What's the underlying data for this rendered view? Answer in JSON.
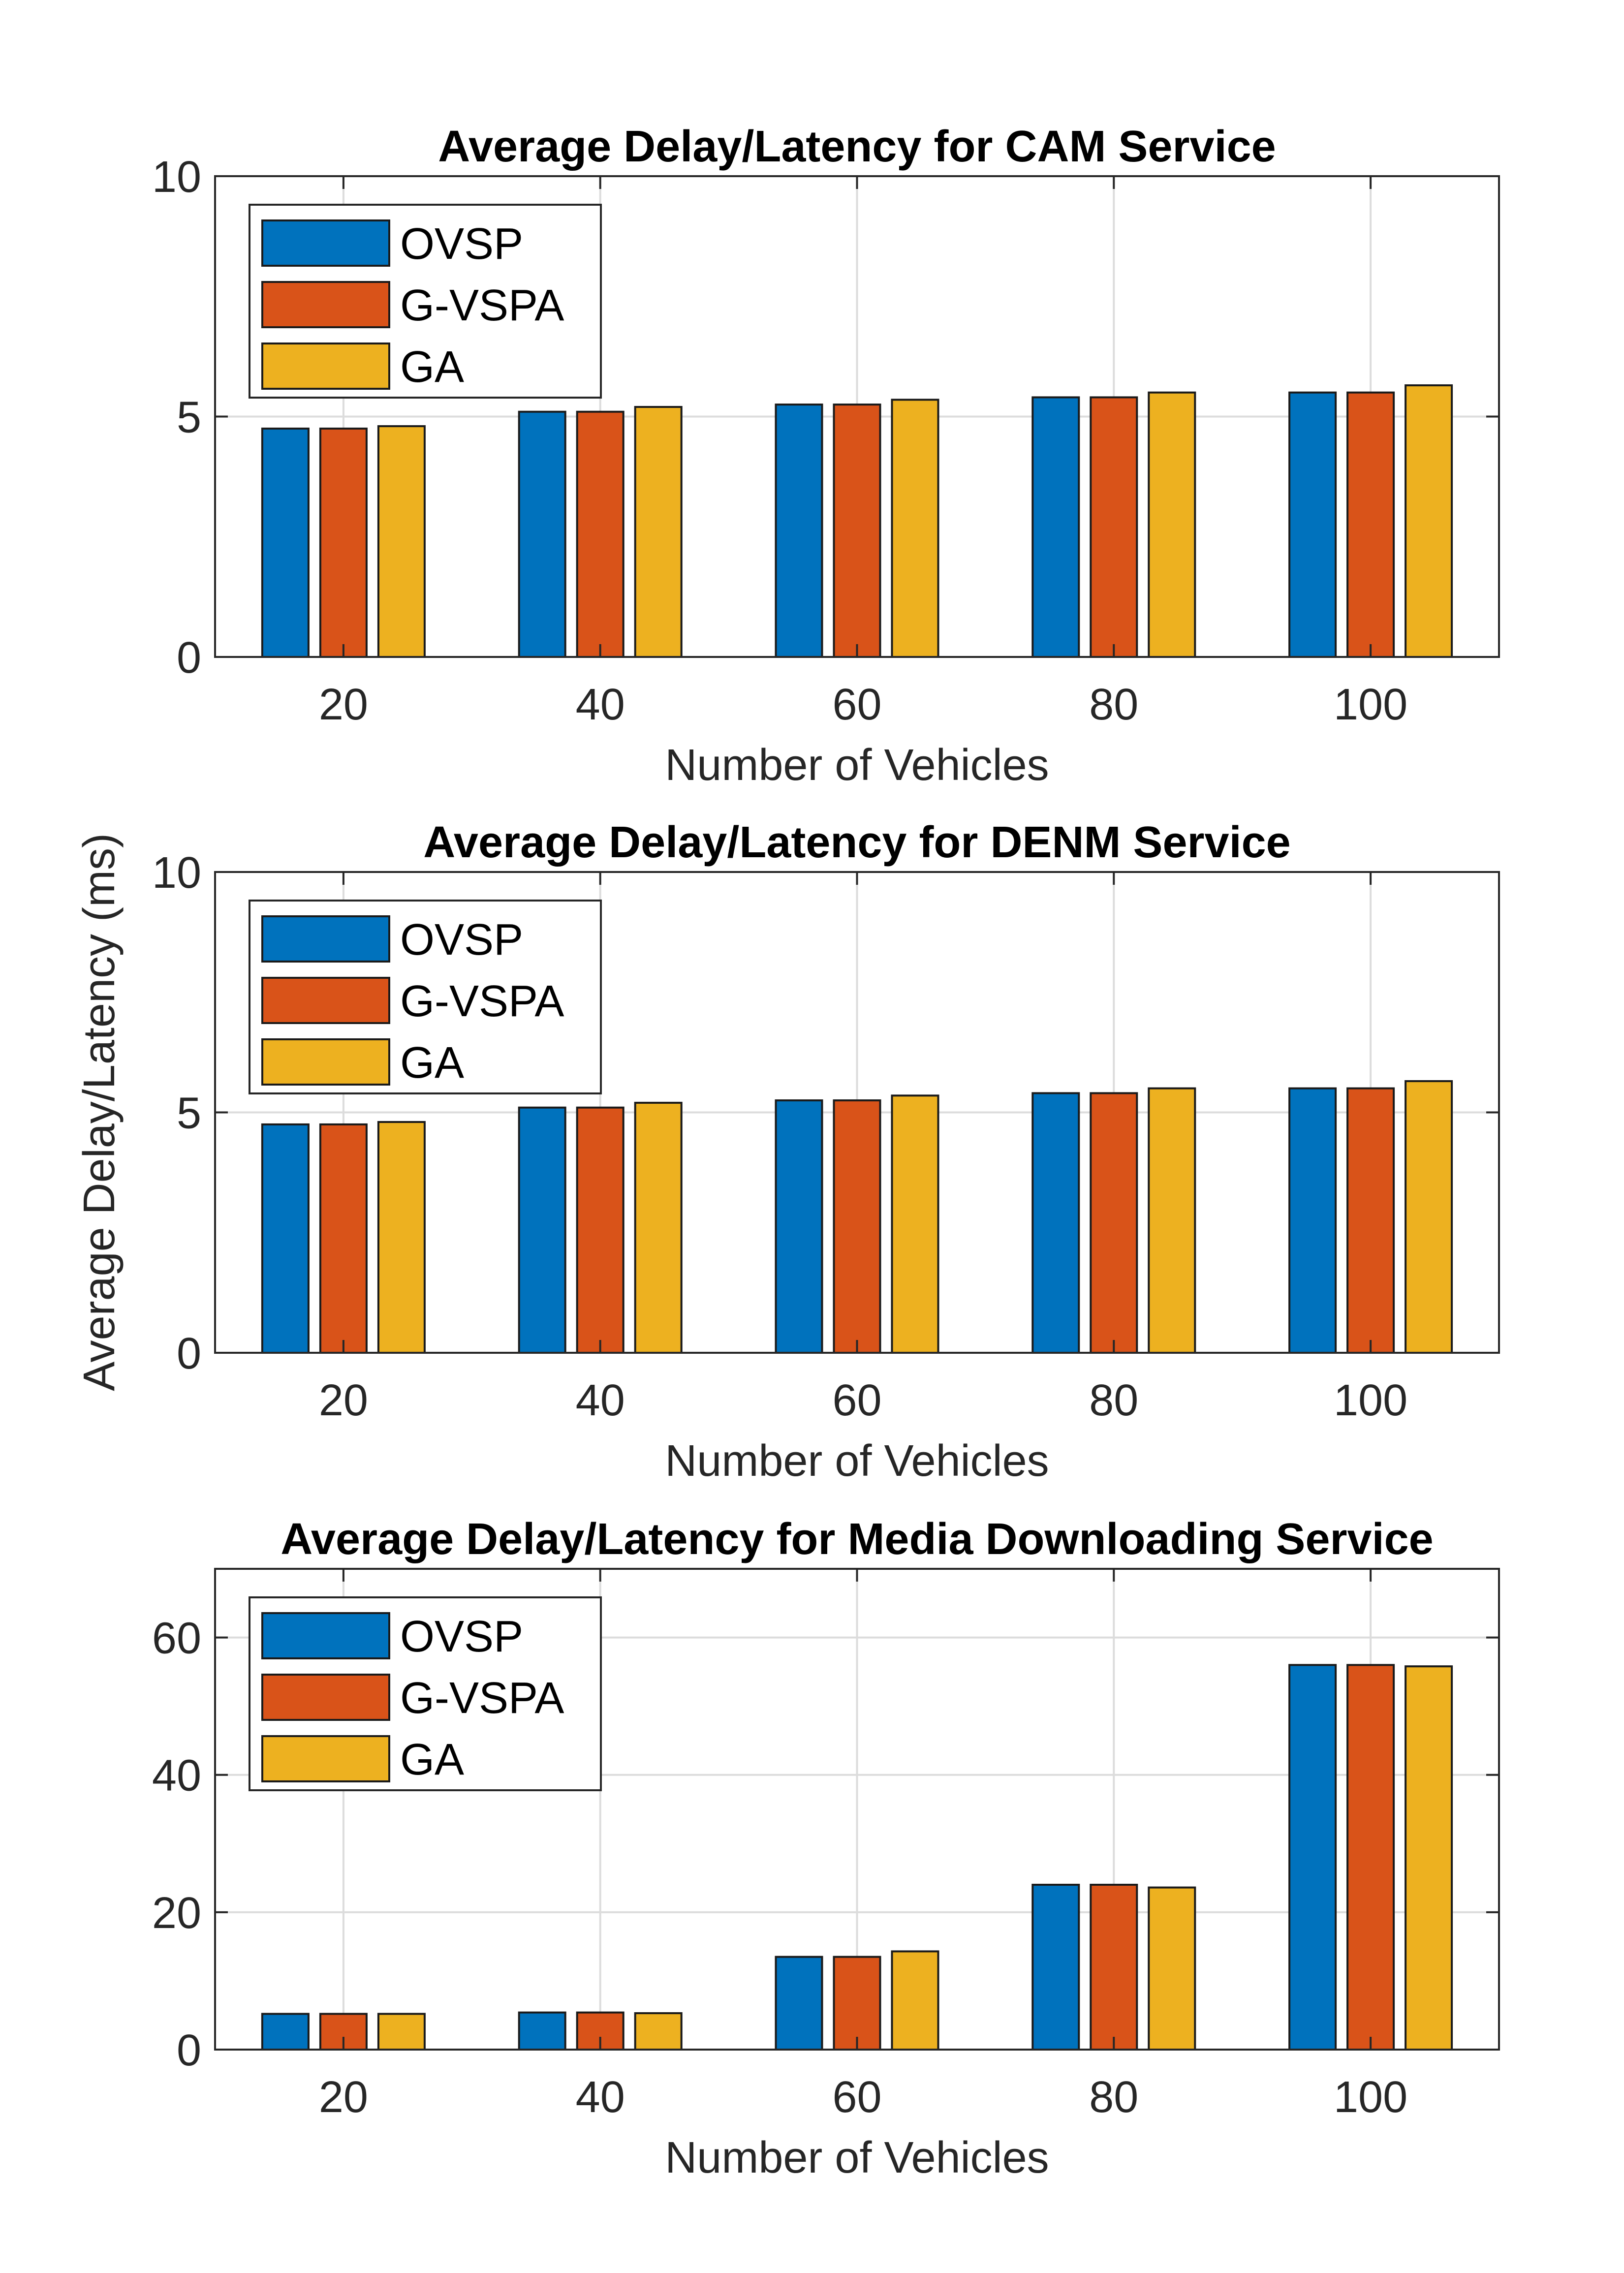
{
  "figure": {
    "shared_ylabel": "Average Delay/Latency (ms)"
  },
  "chart_data": [
    {
      "type": "bar",
      "title": "Average Delay/Latency for CAM Service",
      "xlabel": "Number of Vehicles",
      "ylabel": "Average Delay/Latency (ms)",
      "categories": [
        "20",
        "40",
        "60",
        "80",
        "100"
      ],
      "ylim": [
        0,
        10
      ],
      "yticks": [
        "0",
        "5",
        "10"
      ],
      "grid": true,
      "legend": "top-left",
      "series": [
        {
          "name": "OVSP",
          "color": "#0072BD",
          "values": [
            4.75,
            5.1,
            5.25,
            5.4,
            5.5
          ]
        },
        {
          "name": "G-VSPA",
          "color": "#D95319",
          "values": [
            4.75,
            5.1,
            5.25,
            5.4,
            5.5
          ]
        },
        {
          "name": "GA",
          "color": "#EDB120",
          "values": [
            4.8,
            5.2,
            5.35,
            5.5,
            5.65
          ]
        }
      ]
    },
    {
      "type": "bar",
      "title": "Average Delay/Latency for DENM Service",
      "xlabel": "Number of Vehicles",
      "ylabel": "Average Delay/Latency (ms)",
      "categories": [
        "20",
        "40",
        "60",
        "80",
        "100"
      ],
      "ylim": [
        0,
        10
      ],
      "yticks": [
        "0",
        "5",
        "10"
      ],
      "grid": true,
      "legend": "top-left",
      "series": [
        {
          "name": "OVSP",
          "color": "#0072BD",
          "values": [
            4.75,
            5.1,
            5.25,
            5.4,
            5.5
          ]
        },
        {
          "name": "G-VSPA",
          "color": "#D95319",
          "values": [
            4.75,
            5.1,
            5.25,
            5.4,
            5.5
          ]
        },
        {
          "name": "GA",
          "color": "#EDB120",
          "values": [
            4.8,
            5.2,
            5.35,
            5.5,
            5.65
          ]
        }
      ]
    },
    {
      "type": "bar",
      "title": "Average Delay/Latency for Media Downloading Service",
      "xlabel": "Number of Vehicles",
      "ylabel": "Average Delay/Latency (ms)",
      "categories": [
        "20",
        "40",
        "60",
        "80",
        "100"
      ],
      "ylim": [
        0,
        70
      ],
      "yticks": [
        "0",
        "20",
        "40",
        "60"
      ],
      "grid": true,
      "legend": "top-left",
      "series": [
        {
          "name": "OVSP",
          "color": "#0072BD",
          "values": [
            5.2,
            5.4,
            13.5,
            24,
            56
          ]
        },
        {
          "name": "G-VSPA",
          "color": "#D95319",
          "values": [
            5.2,
            5.4,
            13.5,
            24,
            56
          ]
        },
        {
          "name": "GA",
          "color": "#EDB120",
          "values": [
            5.2,
            5.3,
            14.3,
            23.6,
            55.8
          ]
        }
      ]
    }
  ]
}
